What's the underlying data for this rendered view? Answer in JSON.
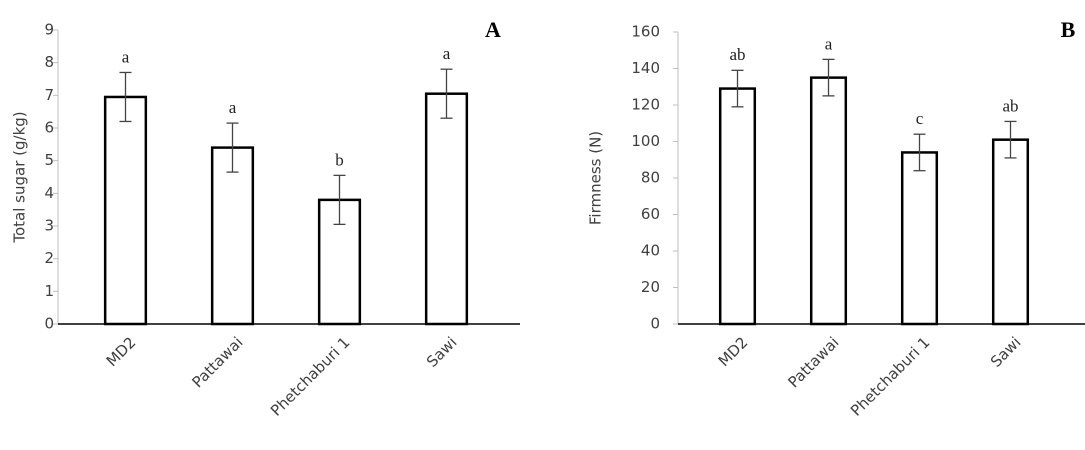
{
  "chart_data": [
    {
      "type": "bar",
      "panel": "A",
      "ylabel": "Total sugar  (g/kg)",
      "categories": [
        "MD2",
        "Pattawai",
        "Phetchaburi 1",
        "Sawi"
      ],
      "values": [
        6.95,
        5.4,
        3.8,
        7.05
      ],
      "errors": [
        0.75,
        0.75,
        0.75,
        0.75
      ],
      "letters": [
        "a",
        "a",
        "b",
        "a"
      ],
      "ylim": [
        0,
        9
      ],
      "yticks": [
        0,
        1,
        2,
        3,
        4,
        5,
        6,
        7,
        8,
        9
      ],
      "color": "#ffffff"
    },
    {
      "type": "bar",
      "panel": "B",
      "ylabel": "Firmness (N)",
      "categories": [
        "MD2",
        "Pattawai",
        "Phetchaburi 1",
        "Sawi"
      ],
      "values": [
        129,
        135,
        94,
        101
      ],
      "errors": [
        10,
        10,
        10,
        10
      ],
      "letters": [
        "ab",
        "a",
        "c",
        "ab"
      ],
      "ylim": [
        0,
        160
      ],
      "yticks": [
        0,
        20,
        40,
        60,
        80,
        100,
        120,
        140,
        160
      ],
      "color": "#ffffff"
    }
  ]
}
